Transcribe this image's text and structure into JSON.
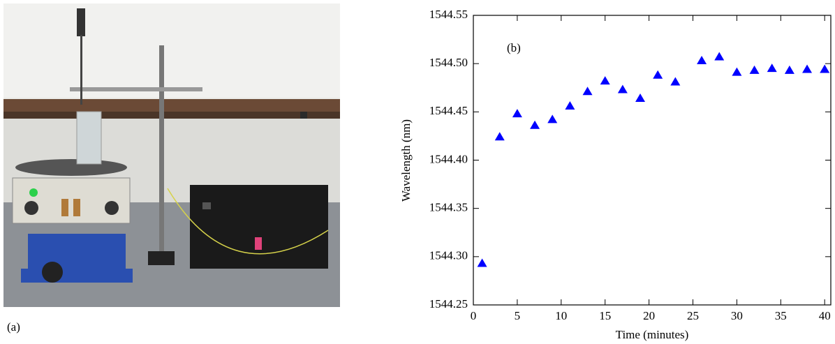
{
  "panel_a_label": "(a)",
  "chart_data": {
    "type": "scatter",
    "annotation": "(b)",
    "x_label": "Time (minutes)",
    "y_label": "Wavelength (nm)",
    "x": [
      1,
      3,
      5,
      7,
      9,
      11,
      13,
      15,
      17,
      19,
      21,
      23,
      26,
      28,
      30,
      32,
      34,
      36,
      38,
      40
    ],
    "values": [
      1544.293,
      1544.424,
      1544.448,
      1544.436,
      1544.442,
      1544.456,
      1544.471,
      1544.482,
      1544.473,
      1544.464,
      1544.488,
      1544.481,
      1544.503,
      1544.507,
      1544.491,
      1544.493,
      1544.495,
      1544.493,
      1544.494,
      1544.494
    ],
    "color": "#0000ff",
    "marker": "triangle",
    "xlim": [
      0,
      40.7
    ],
    "xticks": [
      0,
      5,
      10,
      15,
      20,
      25,
      30,
      35,
      40
    ],
    "ylim": [
      1544.25,
      1544.55
    ],
    "yticks": [
      {
        "value": 1544.25,
        "label": "1544.25"
      },
      {
        "value": 1544.3,
        "label": "1544.30"
      },
      {
        "value": 1544.35,
        "label": "1544.35"
      },
      {
        "value": 1544.4,
        "label": "1544.40"
      },
      {
        "value": 1544.45,
        "label": "1544.45"
      },
      {
        "value": 1544.5,
        "label": "1544.50"
      },
      {
        "value": 1544.55,
        "label": "1544.55"
      }
    ]
  }
}
